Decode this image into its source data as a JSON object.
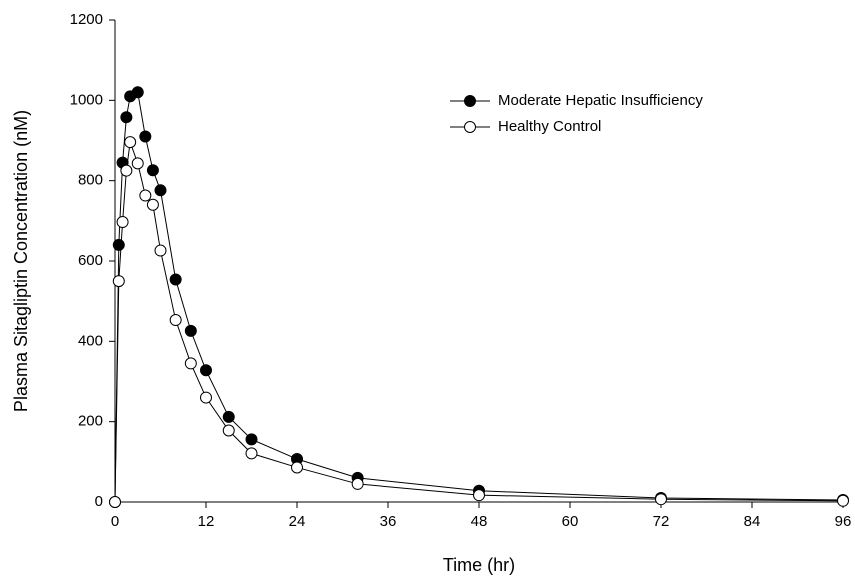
{
  "chart_data": {
    "type": "line",
    "xlabel": "Time (hr)",
    "ylabel": "Plasma Sitagliptin Concentration (nM)",
    "x": [
      0,
      0.5,
      1,
      1.5,
      2,
      3,
      4,
      5,
      6,
      8,
      10,
      12,
      15,
      18,
      24,
      32,
      48,
      72,
      96
    ],
    "series": [
      {
        "name": "Moderate Hepatic Insufficiency",
        "color": "#000000",
        "marker_fill": "#000000",
        "values": [
          0,
          640,
          845,
          958,
          1010,
          1020,
          910,
          826,
          776,
          554,
          426,
          328,
          212,
          156,
          107,
          60,
          28,
          10,
          5
        ]
      },
      {
        "name": "Healthy Control",
        "color": "#000000",
        "marker_fill": "#ffffff",
        "values": [
          0,
          550,
          697,
          825,
          896,
          843,
          763,
          740,
          626,
          453,
          345,
          260,
          178,
          121,
          86,
          45,
          17,
          7,
          3
        ]
      }
    ],
    "xlim": [
      0,
      96
    ],
    "xticks": [
      0,
      12,
      24,
      36,
      48,
      60,
      72,
      84,
      96
    ],
    "ylim": [
      0,
      1200
    ],
    "yticks": [
      0,
      200,
      400,
      600,
      800,
      1000,
      1200
    ],
    "grid": false,
    "legend": "upper right"
  }
}
